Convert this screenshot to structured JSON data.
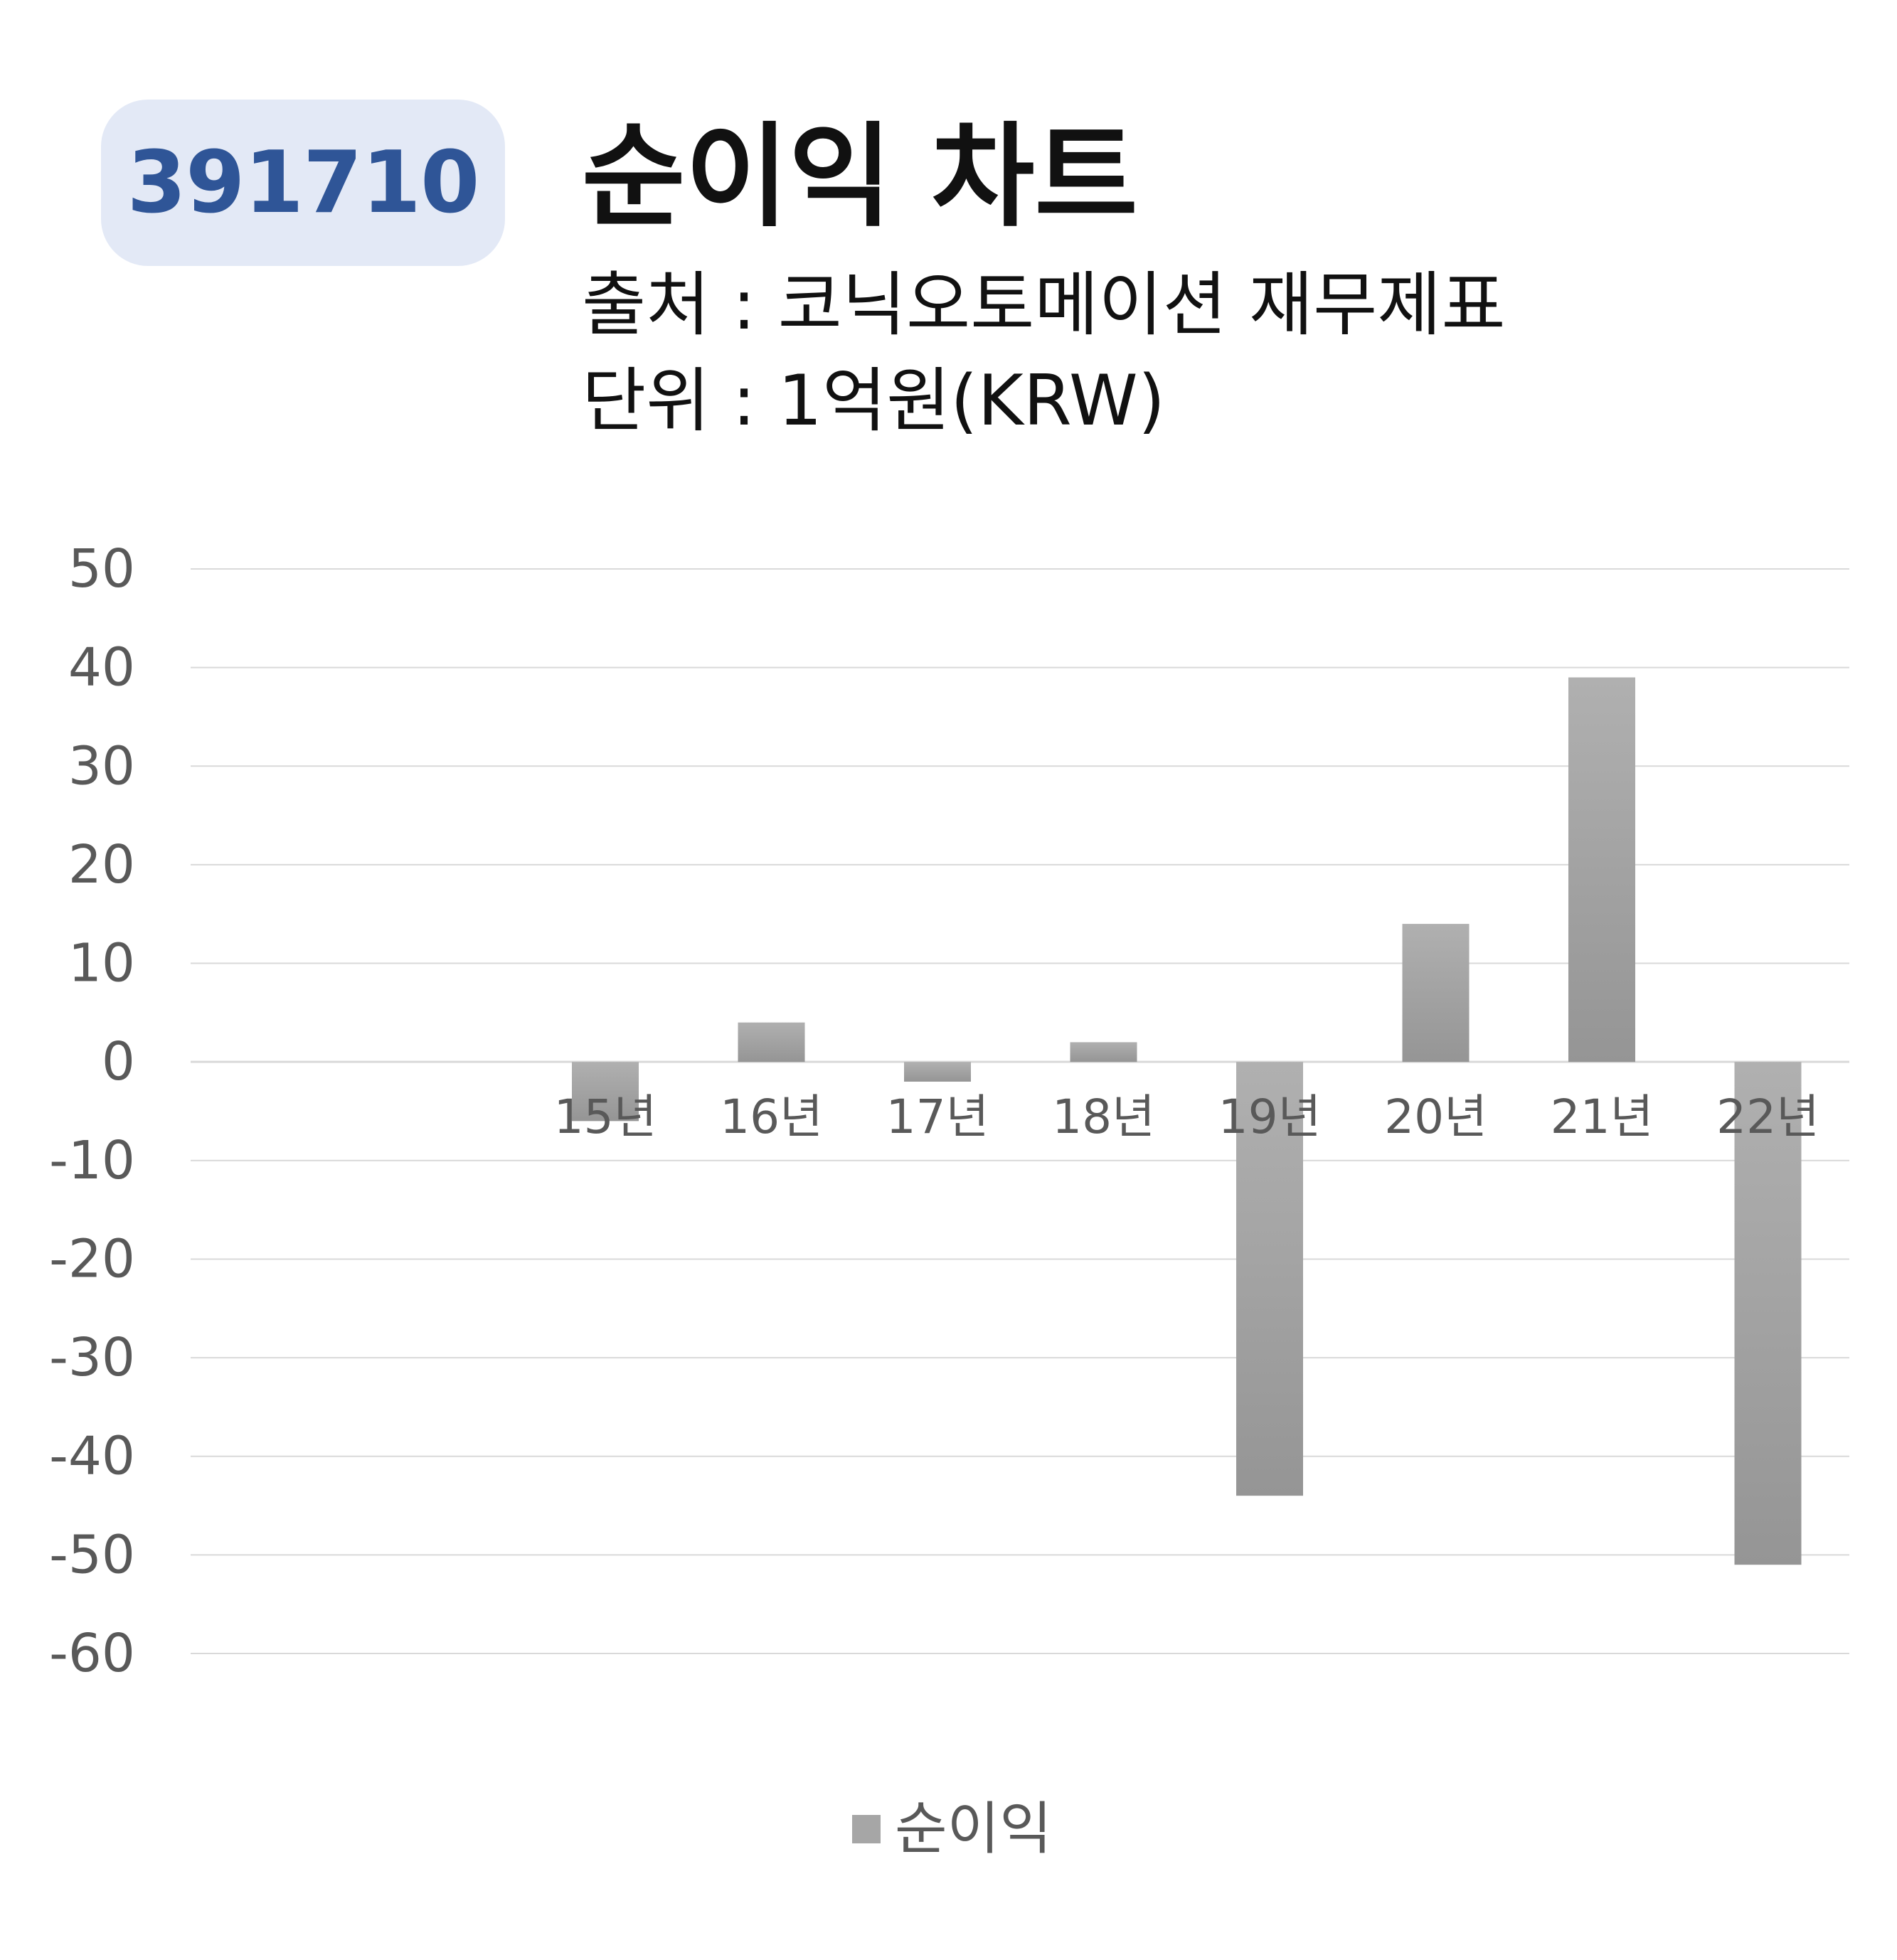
{
  "header": {
    "code": "391710",
    "title": "순이익 차트",
    "source": "출처 : 코닉오토메이션 재무제표",
    "unit": "단위 : 1억원(KRW)"
  },
  "legend": {
    "label": "순이익"
  },
  "colors": {
    "bar": "#a6a6a6",
    "grid": "#d9d9d9",
    "tick": "#595959",
    "badge_bg": "#e3e9f6",
    "badge_text": "#2f5597"
  },
  "chart_data": {
    "type": "bar",
    "categories": [
      "15년",
      "16년",
      "17년",
      "18년",
      "19년",
      "20년",
      "21년",
      "22년"
    ],
    "series": [
      {
        "name": "순이익",
        "values": [
          -6,
          4,
          -2,
          2,
          -44,
          14,
          39,
          -51
        ]
      }
    ],
    "ylim": [
      -60,
      50
    ],
    "yticks": [
      50,
      40,
      30,
      20,
      10,
      0,
      -10,
      -20,
      -30,
      -40,
      -50,
      -60
    ],
    "grid": true,
    "legend": "bottom"
  }
}
